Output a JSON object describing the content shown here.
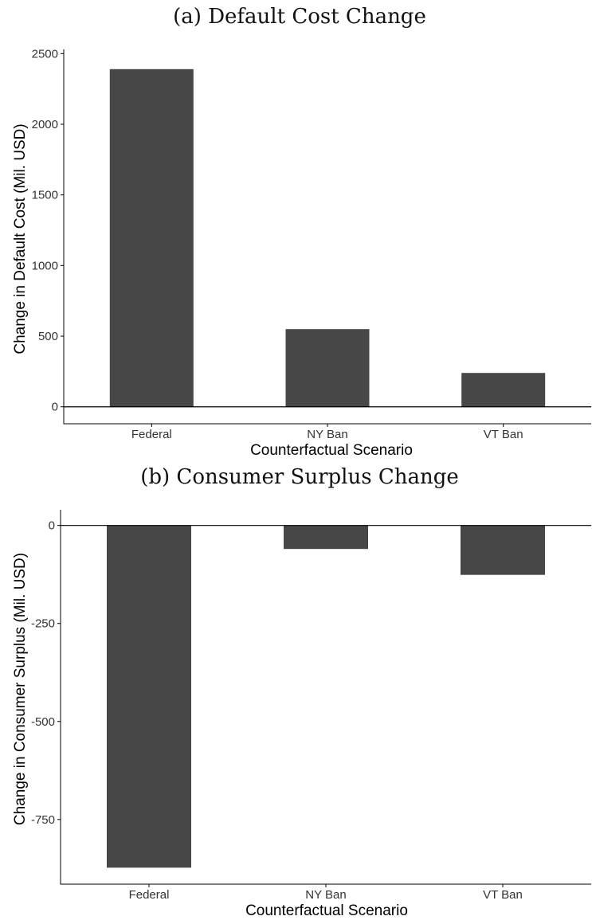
{
  "chart_data": [
    {
      "type": "bar",
      "title": "(a) Default Cost Change",
      "xlabel": "Counterfactual Scenario",
      "ylabel": "Change in Default Cost (Mil. USD)",
      "categories": [
        "Federal",
        "NY Ban",
        "VT Ban"
      ],
      "values": [
        2390,
        550,
        240
      ],
      "ylim": [
        -120,
        2530
      ],
      "yticks": [
        0,
        500,
        1000,
        1500,
        2000,
        2500
      ],
      "ytick_labels": [
        "0",
        "500",
        "1000",
        "1500",
        "2000",
        "2500"
      ],
      "bar_color": "#474747",
      "grid": false
    },
    {
      "type": "bar",
      "title": "(b) Consumer Surplus Change",
      "xlabel": "Counterfactual Scenario",
      "ylabel": "Change in Consumer Surplus (Mil. USD)",
      "categories": [
        "Federal",
        "NY Ban",
        "VT Ban"
      ],
      "values": [
        -873,
        -60,
        -126
      ],
      "ylim": [
        -915,
        40
      ],
      "yticks": [
        0,
        -250,
        -500,
        -750
      ],
      "ytick_labels": [
        "0",
        "-250",
        "-500",
        "-750"
      ],
      "bar_color": "#474747",
      "grid": false
    }
  ]
}
